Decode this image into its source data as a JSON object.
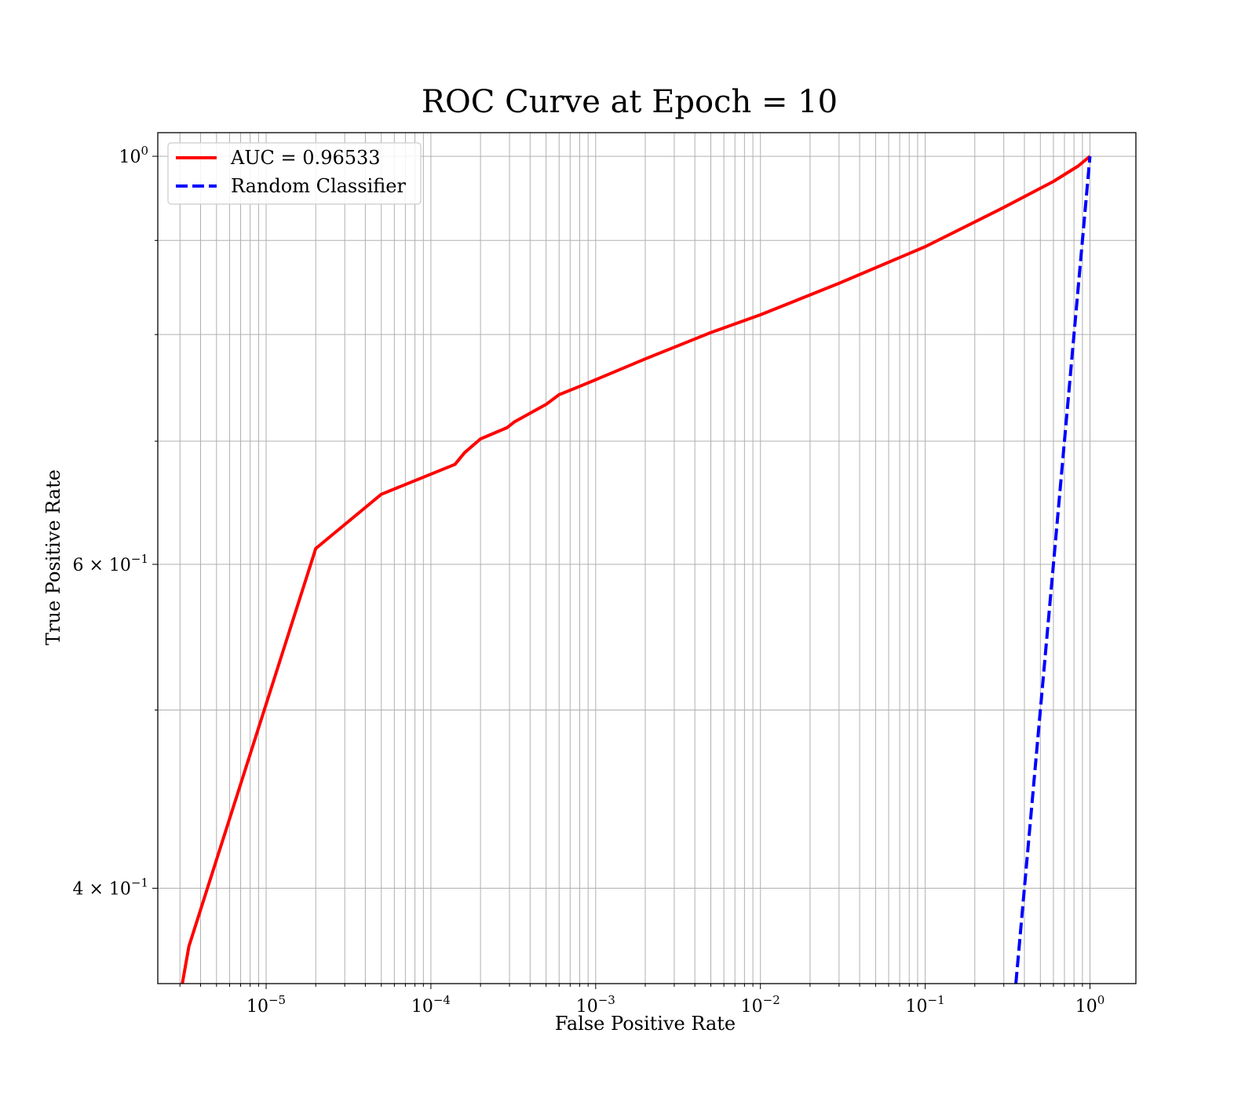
{
  "chart_data": {
    "type": "line",
    "title": "ROC Curve at Epoch = 10",
    "xlabel": "False Positive Rate",
    "ylabel": "True Positive Rate",
    "xscale": "log",
    "yscale": "log",
    "xlim": [
      2.2e-06,
      1.9
    ],
    "ylim": [
      0.355,
      1.03
    ],
    "grid": true,
    "grid_minor": true,
    "legend_position": "top-left",
    "x_ticks": [
      {
        "value": 1e-05,
        "base": "10",
        "exp": "−5"
      },
      {
        "value": 0.0001,
        "base": "10",
        "exp": "−4"
      },
      {
        "value": 0.001,
        "base": "10",
        "exp": "−3"
      },
      {
        "value": 0.01,
        "base": "10",
        "exp": "−2"
      },
      {
        "value": 0.1,
        "base": "10",
        "exp": "−1"
      },
      {
        "value": 1,
        "base": "10",
        "exp": "0"
      }
    ],
    "y_ticks": [
      {
        "value": 1,
        "base": "10",
        "exp": "0"
      },
      {
        "value": 0.6,
        "base": "6 × 10",
        "exp": "−1"
      },
      {
        "value": 0.4,
        "base": "4 × 10",
        "exp": "−1"
      }
    ],
    "y_minor_ticks": [
      0.5,
      0.7,
      0.8,
      0.9
    ],
    "series": [
      {
        "name": "AUC = 0.96533",
        "color": "#ff0000",
        "style": "solid",
        "x": [
          3.1e-06,
          3.4e-06,
          2e-05,
          5e-05,
          0.00014,
          0.00016,
          0.0002,
          0.00025,
          0.00029,
          0.00032,
          0.0005,
          0.0006,
          0.00075,
          0.001,
          0.002,
          0.005,
          0.01,
          0.03,
          0.1,
          0.3,
          0.6,
          0.85,
          1.0
        ],
        "y": [
          0.355,
          0.372,
          0.612,
          0.655,
          0.68,
          0.69,
          0.702,
          0.708,
          0.712,
          0.717,
          0.733,
          0.742,
          0.748,
          0.756,
          0.776,
          0.802,
          0.82,
          0.853,
          0.893,
          0.938,
          0.969,
          0.988,
          1.0
        ]
      },
      {
        "name": "Random Classifier",
        "color": "#0000ff",
        "style": "dashed",
        "x": [
          0.355,
          0.4,
          0.5,
          0.6,
          0.7,
          0.8,
          0.9,
          1.0
        ],
        "y": [
          0.355,
          0.4,
          0.5,
          0.6,
          0.7,
          0.8,
          0.9,
          1.0
        ]
      }
    ]
  }
}
